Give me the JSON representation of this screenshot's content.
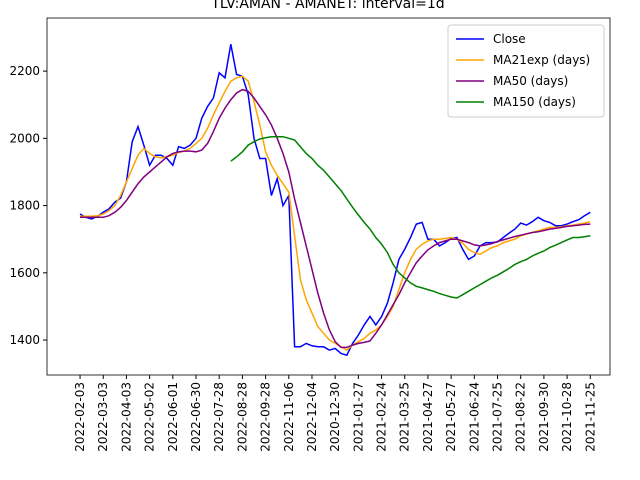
{
  "chart_data": {
    "type": "line",
    "title": "TLV:AMAN - AMANET: interval=1d",
    "xlim": [
      -5.7,
      91.4
    ],
    "ylim": [
      1296,
      2358
    ],
    "yticks": [
      1400,
      1600,
      1800,
      2000,
      2200
    ],
    "xticks": [
      {
        "value": 0,
        "label": "2022-02-03"
      },
      {
        "value": 4,
        "label": "2022-03-03"
      },
      {
        "value": 8,
        "label": "2022-04-03"
      },
      {
        "value": 12,
        "label": "2022-05-02"
      },
      {
        "value": 16,
        "label": "2022-06-01"
      },
      {
        "value": 20,
        "label": "2022-06-30"
      },
      {
        "value": 24,
        "label": "2022-07-28"
      },
      {
        "value": 28,
        "label": "2022-08-28"
      },
      {
        "value": 32,
        "label": "2022-09-28"
      },
      {
        "value": 36,
        "label": "2022-11-06"
      },
      {
        "value": 40,
        "label": "2022-12-04"
      },
      {
        "value": 44,
        "label": "2020-12-30"
      },
      {
        "value": 48,
        "label": "2021-01-27"
      },
      {
        "value": 52,
        "label": "2021-02-24"
      },
      {
        "value": 56,
        "label": "2021-03-25"
      },
      {
        "value": 60,
        "label": "2021-04-27"
      },
      {
        "value": 64,
        "label": "2021-05-27"
      },
      {
        "value": 68,
        "label": "2021-06-24"
      },
      {
        "value": 72,
        "label": "2021-07-25"
      },
      {
        "value": 76,
        "label": "2021-08-22"
      },
      {
        "value": 80,
        "label": "2021-09-30"
      },
      {
        "value": 84,
        "label": "2021-10-28"
      },
      {
        "value": 88,
        "label": "2021-11-25"
      }
    ],
    "legend": "upper right",
    "grid": false,
    "series": [
      {
        "name": "Close",
        "color": "#0000ff",
        "values": [
          1775,
          1765,
          1760,
          1768,
          1780,
          1790,
          1810,
          1822,
          1870,
          1990,
          2035,
          1980,
          1920,
          1950,
          1950,
          1940,
          1920,
          1975,
          1970,
          1980,
          2000,
          2060,
          2095,
          2120,
          2195,
          2180,
          2280,
          2190,
          2185,
          2130,
          2000,
          1940,
          1940,
          1830,
          1880,
          1800,
          1830,
          1380,
          1380,
          1390,
          1383,
          1380,
          1380,
          1370,
          1375,
          1360,
          1355,
          1390,
          1415,
          1445,
          1470,
          1445,
          1470,
          1510,
          1570,
          1640,
          1670,
          1705,
          1745,
          1750,
          1700,
          1700,
          1680,
          1690,
          1702,
          1705,
          1670,
          1640,
          1650,
          1680,
          1690,
          1690,
          1692,
          1705,
          1718,
          1730,
          1748,
          1742,
          1752,
          1765,
          1755,
          1750,
          1740,
          1740,
          1745,
          1752,
          1758,
          1770,
          1780
        ]
      },
      {
        "name": "MA21exp (days)",
        "color": "#ffa500",
        "values": [
          1768,
          1768,
          1768,
          1770,
          1775,
          1785,
          1800,
          1830,
          1870,
          1910,
          1950,
          1970,
          1955,
          1945,
          1942,
          1945,
          1950,
          1958,
          1962,
          1970,
          1985,
          2000,
          2030,
          2070,
          2105,
          2140,
          2170,
          2180,
          2185,
          2170,
          2110,
          2040,
          1960,
          1920,
          1890,
          1865,
          1840,
          1710,
          1580,
          1520,
          1480,
          1440,
          1420,
          1400,
          1390,
          1380,
          1370,
          1385,
          1395,
          1405,
          1420,
          1430,
          1445,
          1470,
          1500,
          1550,
          1600,
          1640,
          1670,
          1685,
          1695,
          1700,
          1700,
          1702,
          1705,
          1700,
          1688,
          1670,
          1660,
          1655,
          1665,
          1675,
          1680,
          1690,
          1695,
          1700,
          1710,
          1715,
          1720,
          1725,
          1730,
          1735,
          1735,
          1737,
          1740,
          1742,
          1745,
          1748,
          1752
        ]
      },
      {
        "name": "MA50 (days)",
        "color": "#800080",
        "values": [
          1765,
          1765,
          1765,
          1765,
          1765,
          1770,
          1780,
          1795,
          1815,
          1840,
          1865,
          1885,
          1900,
          1915,
          1930,
          1945,
          1955,
          1960,
          1962,
          1962,
          1960,
          1965,
          1985,
          2020,
          2060,
          2090,
          2115,
          2135,
          2145,
          2140,
          2120,
          2095,
          2070,
          2040,
          2000,
          1955,
          1900,
          1820,
          1750,
          1680,
          1610,
          1540,
          1480,
          1430,
          1395,
          1378,
          1378,
          1385,
          1390,
          1393,
          1397,
          1420,
          1445,
          1475,
          1505,
          1535,
          1570,
          1600,
          1630,
          1650,
          1668,
          1680,
          1690,
          1695,
          1700,
          1700,
          1695,
          1690,
          1683,
          1680,
          1683,
          1687,
          1693,
          1698,
          1703,
          1708,
          1712,
          1716,
          1720,
          1722,
          1726,
          1730,
          1732,
          1735,
          1738,
          1740,
          1742,
          1744,
          1745
        ]
      },
      {
        "name": "MA150 (days)",
        "color": "#008000",
        "values": [
          null,
          null,
          null,
          null,
          null,
          null,
          null,
          null,
          null,
          null,
          null,
          null,
          null,
          null,
          null,
          null,
          null,
          null,
          null,
          null,
          null,
          null,
          null,
          null,
          null,
          null,
          1932,
          1945,
          1960,
          1980,
          1990,
          1998,
          2002,
          2005,
          2005,
          2005,
          2000,
          1995,
          1975,
          1955,
          1940,
          1920,
          1905,
          1885,
          1865,
          1845,
          1820,
          1795,
          1772,
          1750,
          1730,
          1705,
          1685,
          1660,
          1625,
          1600,
          1585,
          1570,
          1560,
          1555,
          1550,
          1545,
          1538,
          1533,
          1528,
          1525,
          1535,
          1545,
          1555,
          1565,
          1575,
          1585,
          1593,
          1603,
          1613,
          1625,
          1633,
          1640,
          1650,
          1658,
          1665,
          1675,
          1682,
          1690,
          1698,
          1705,
          1705,
          1707,
          1710
        ]
      }
    ]
  }
}
